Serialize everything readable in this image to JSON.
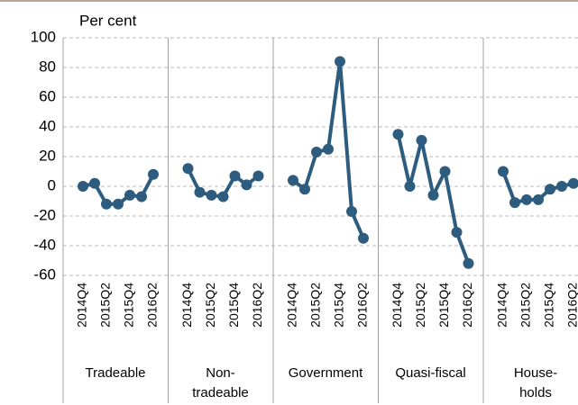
{
  "chart_data": {
    "type": "line",
    "ylabel": "Per cent",
    "categories": [
      "2014Q4",
      null,
      "2015Q2",
      null,
      "2015Q4",
      null,
      "2016Q2"
    ],
    "series": [
      {
        "name": "Tradeable",
        "color": "#2d5c7f",
        "values": [
          0,
          2,
          -12,
          -12,
          -6,
          -7,
          8
        ]
      },
      {
        "name": "Non-\ntradeable",
        "color": "#2d5c7f",
        "values": [
          12,
          -4,
          -6,
          -7,
          7,
          1,
          7
        ]
      },
      {
        "name": "Government",
        "color": "#2d5c7f",
        "values": [
          4,
          -2,
          23,
          25,
          84,
          -17,
          -35
        ]
      },
      {
        "name": "Quasi-fiscal",
        "color": "#2d5c7f",
        "values": [
          35,
          0,
          31,
          -6,
          10,
          -31,
          -52
        ]
      },
      {
        "name": "House-\nholds",
        "color": "#2d5c7f",
        "values": [
          10,
          -11,
          -9,
          -9,
          -2,
          0,
          2
        ]
      }
    ],
    "ylim": [
      -60,
      100
    ],
    "yticks": [
      -60,
      -40,
      -20,
      0,
      20,
      40,
      60,
      80,
      100
    ],
    "grid": true
  }
}
